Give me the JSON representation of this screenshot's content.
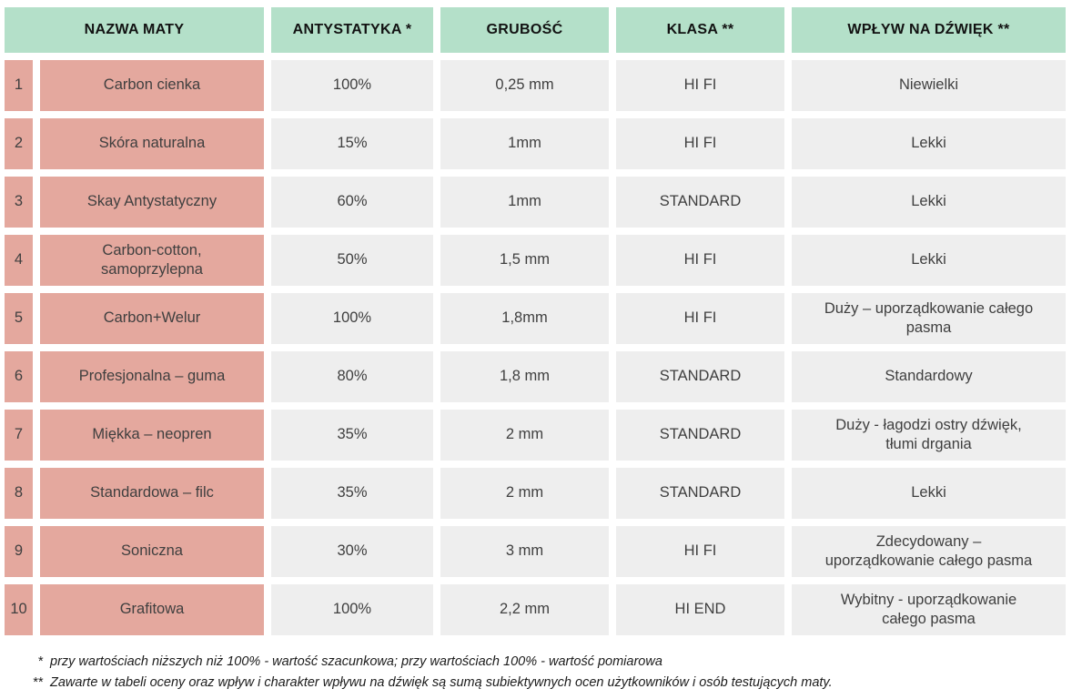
{
  "table": {
    "headers": {
      "name": "NAZWA MATY",
      "antistatic": "ANTYSTATYKA *",
      "thickness": "GRUBOŚĆ",
      "class": "KLASA **",
      "sound": "WPŁYW NA DŹWIĘK **"
    },
    "rows": [
      {
        "no": "1",
        "name": "Carbon cienka",
        "antistatic": "100%",
        "thickness": "0,25 mm",
        "class": "HI FI",
        "sound": "Niewielki"
      },
      {
        "no": "2",
        "name": "Skóra naturalna",
        "antistatic": "15%",
        "thickness": "1mm",
        "class": "HI FI",
        "sound": "Lekki"
      },
      {
        "no": "3",
        "name": "Skay Antystatyczny",
        "antistatic": "60%",
        "thickness": "1mm",
        "class": "STANDARD",
        "sound": "Lekki"
      },
      {
        "no": "4",
        "name": "Carbon-cotton,\nsamoprzylepna",
        "antistatic": "50%",
        "thickness": "1,5 mm",
        "class": "HI FI",
        "sound": "Lekki"
      },
      {
        "no": "5",
        "name": "Carbon+Welur",
        "antistatic": "100%",
        "thickness": "1,8mm",
        "class": "HI FI",
        "sound": "Duży – uporządkowanie całego\npasma"
      },
      {
        "no": "6",
        "name": "Profesjonalna – guma",
        "antistatic": "80%",
        "thickness": "1,8 mm",
        "class": "STANDARD",
        "sound": "Standardowy"
      },
      {
        "no": "7",
        "name": "Miękka – neopren",
        "antistatic": "35%",
        "thickness": "2 mm",
        "class": "STANDARD",
        "sound": "Duży - łagodzi ostry dźwięk,\ntłumi drgania"
      },
      {
        "no": "8",
        "name": "Standardowa – filc",
        "antistatic": "35%",
        "thickness": "2 mm",
        "class": "STANDARD",
        "sound": "Lekki"
      },
      {
        "no": "9",
        "name": "Soniczna",
        "antistatic": "30%",
        "thickness": "3 mm",
        "class": "HI FI",
        "sound": "Zdecydowany –\nuporządkowanie całego pasma"
      },
      {
        "no": "10",
        "name": "Grafitowa",
        "antistatic": "100%",
        "thickness": "2,2 mm",
        "class": "HI END",
        "sound": "Wybitny - uporządkowanie\ncałego pasma"
      }
    ]
  },
  "footnotes": [
    {
      "marker": "*",
      "text": "przy wartościach niższych niż 100% - wartość szacunkowa; przy wartościach 100% - wartość pomiarowa"
    },
    {
      "marker": "**",
      "text": "Zawarte w tabeli oceny oraz wpływ i charakter wpływu na dźwięk są sumą subiektywnych ocen użytkowników i osób testujących maty."
    }
  ],
  "colors": {
    "header_bg": "#b4e0c9",
    "name_bg": "#e4a89e",
    "cell_bg": "#eeeeee",
    "header_text": "#121212",
    "cell_text": "#3f3f3f",
    "footnote_text": "#1c1c1c"
  }
}
